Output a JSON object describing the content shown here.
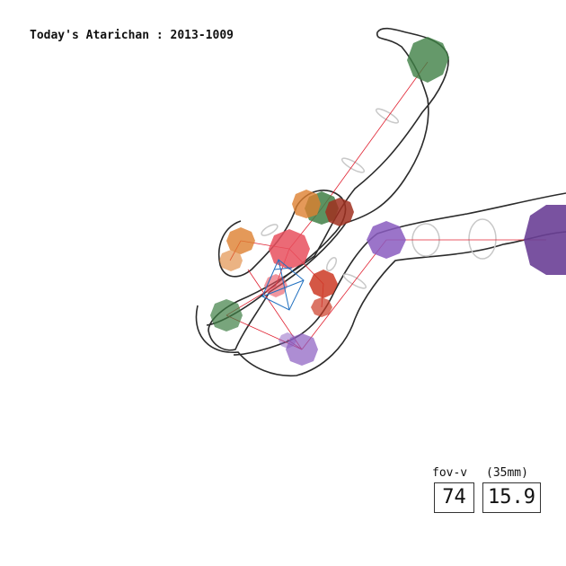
{
  "title": "Today's Atarichan : 2013-1009",
  "hud": {
    "fov_label": "fov-v",
    "lens_label": "(35mm)",
    "fov_value": "74",
    "lens_value": "15.9"
  },
  "colors": {
    "background": "#ffffff",
    "outline": "#2b2b2b",
    "bone": "#e02030",
    "head_green": "#3f7f45",
    "spine_pink": "#e8505e",
    "limb_orange": "#dd8030",
    "limb_red": "#cc3a25",
    "limb_purple": "#8a5cc0",
    "foot_purple": "#6a3f96",
    "camera_gizmo": "#2070c0"
  }
}
